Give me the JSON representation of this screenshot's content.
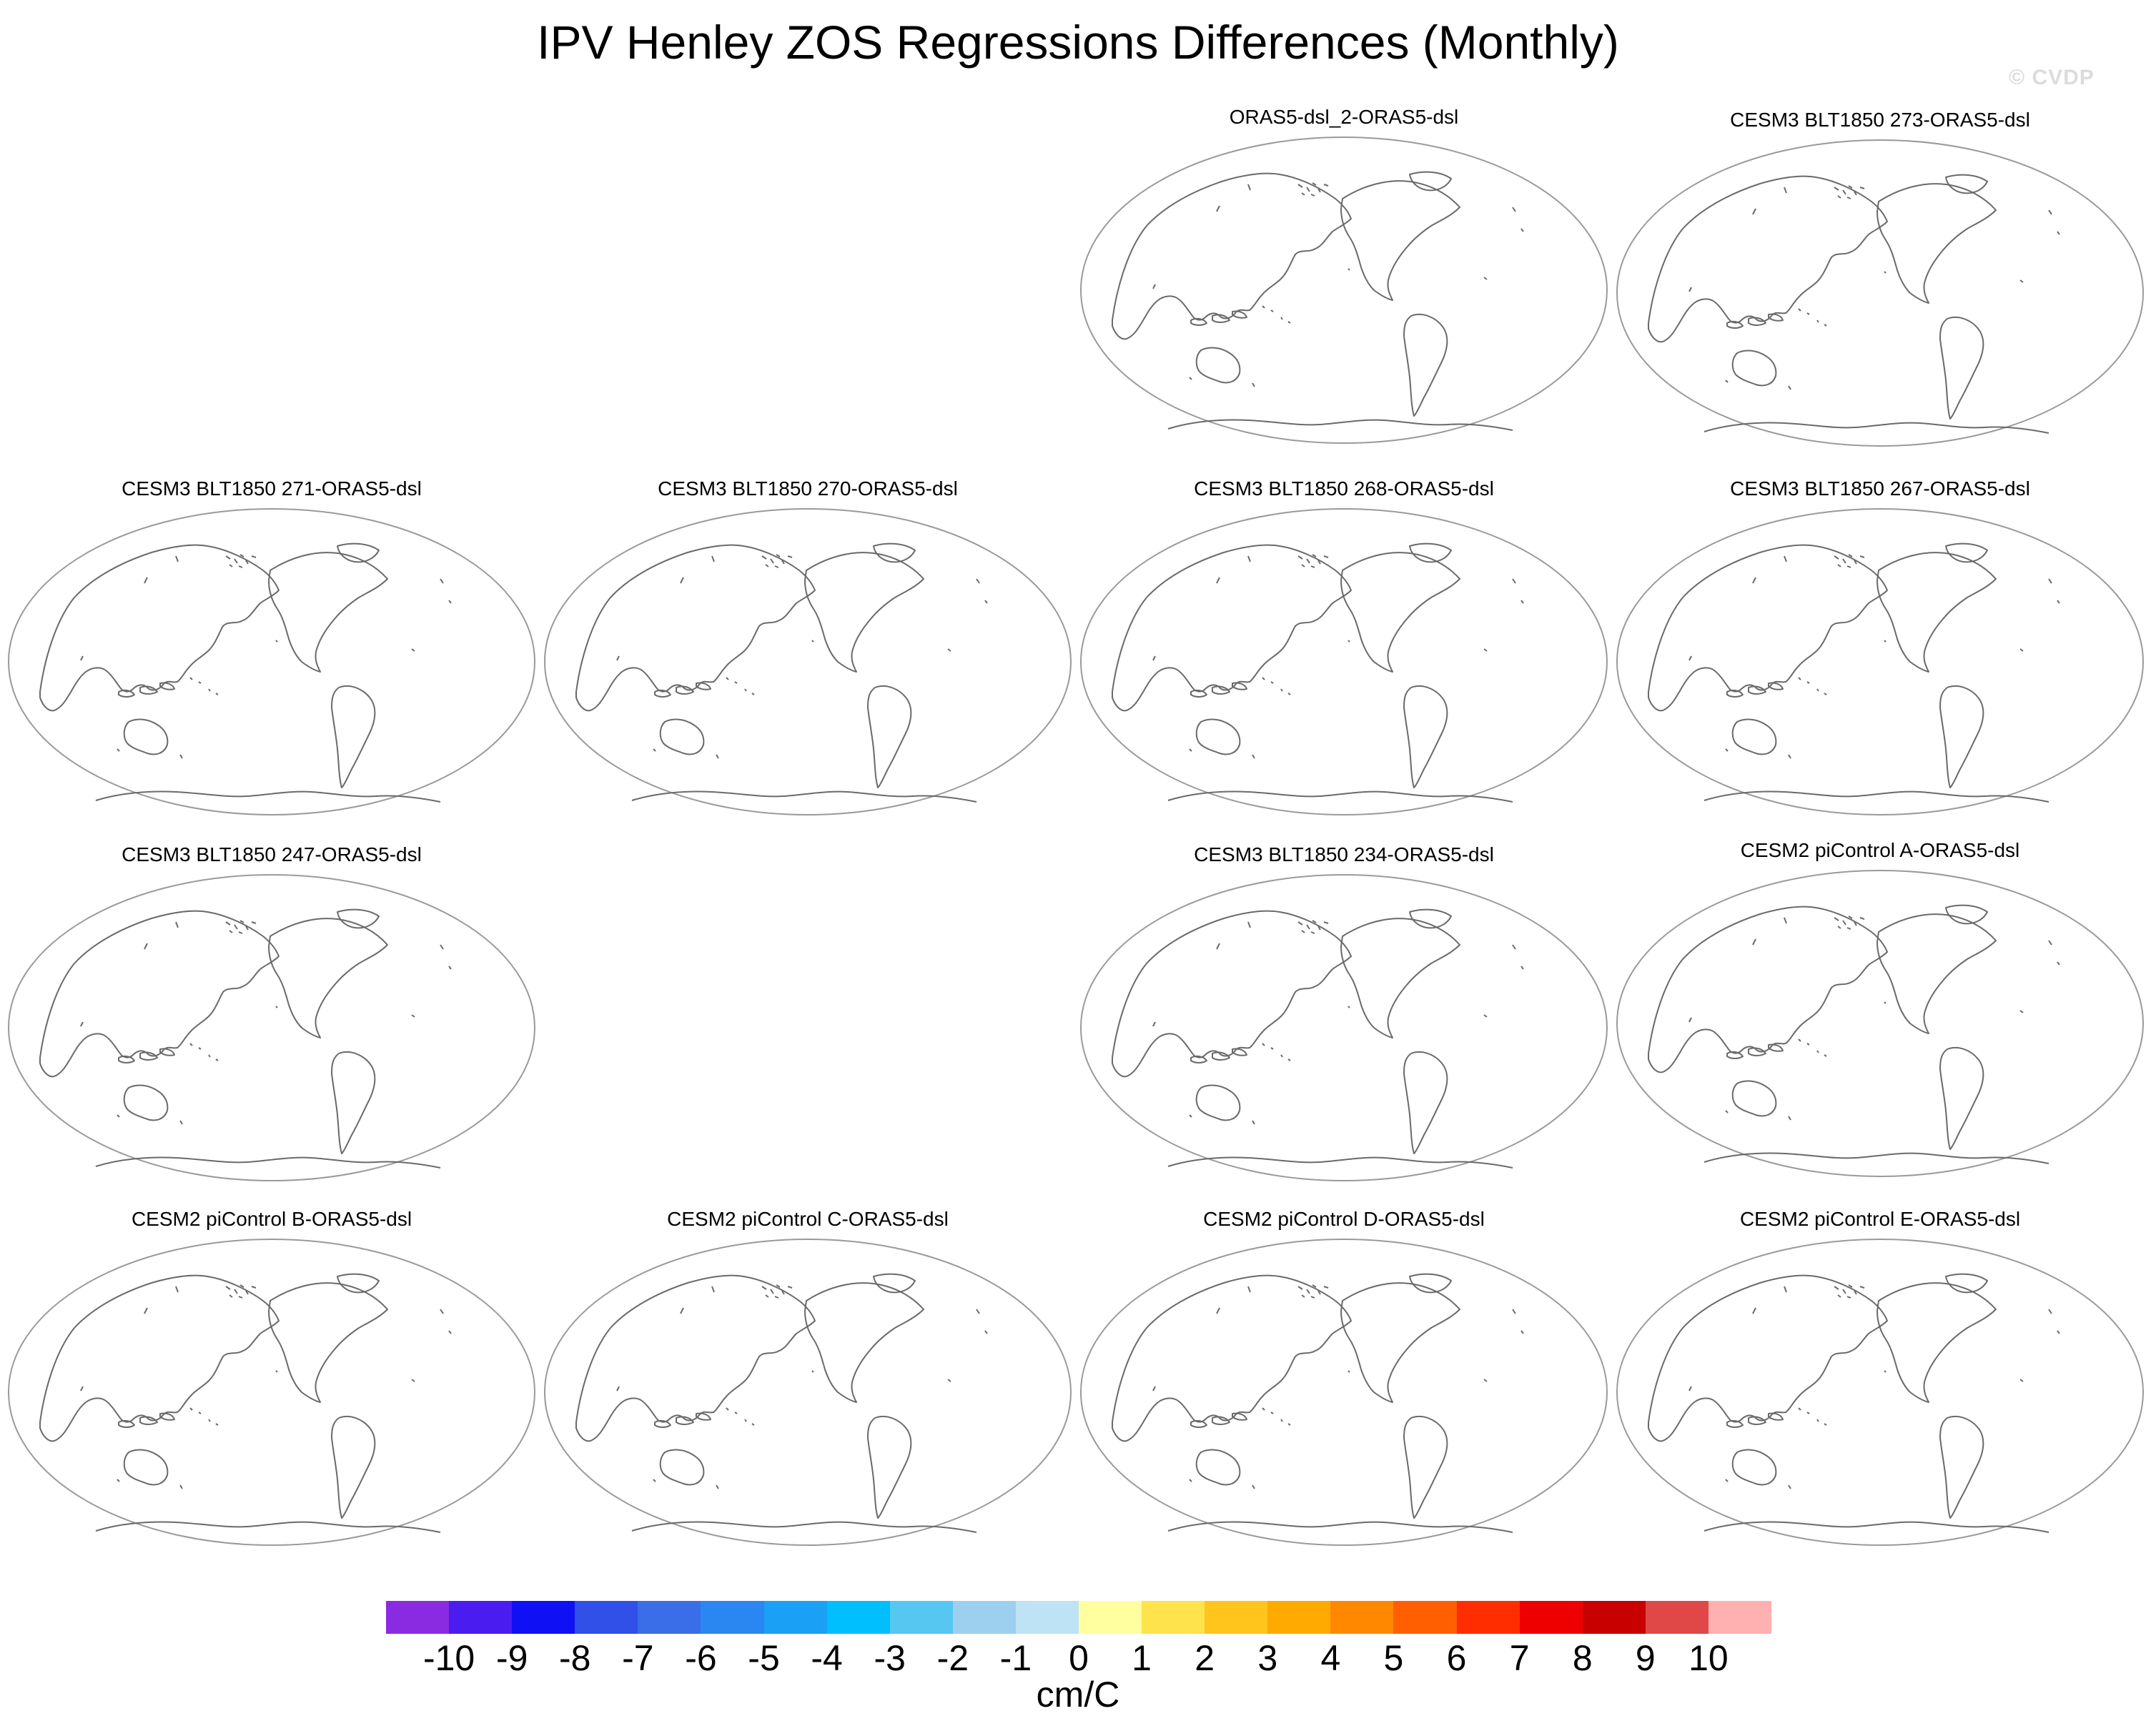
{
  "title": "IPV Henley ZOS Regressions Differences (Monthly)",
  "watermark": "© CVDP",
  "panels": [
    {
      "title": "ORAS5-dsl_2-ORAS5-dsl"
    },
    {
      "title": "CESM3 BLT1850 273-ORAS5-dsl"
    },
    {
      "title": "CESM3 BLT1850 271-ORAS5-dsl"
    },
    {
      "title": "CESM3 BLT1850 270-ORAS5-dsl"
    },
    {
      "title": "CESM3 BLT1850 268-ORAS5-dsl"
    },
    {
      "title": "CESM3 BLT1850 267-ORAS5-dsl"
    },
    {
      "title": "CESM3 BLT1850 247-ORAS5-dsl"
    },
    {
      "title": "CESM3 BLT1850 234-ORAS5-dsl"
    },
    {
      "title": "CESM2 piControl A-ORAS5-dsl"
    },
    {
      "title": "CESM2 piControl B-ORAS5-dsl"
    },
    {
      "title": "CESM2 piControl C-ORAS5-dsl"
    },
    {
      "title": "CESM2 piControl D-ORAS5-dsl"
    },
    {
      "title": "CESM2 piControl E-ORAS5-dsl"
    }
  ],
  "colorbar": {
    "units": "cm/C",
    "labels": [
      "-10",
      "-9",
      "-8",
      "-7",
      "-6",
      "-5",
      "-4",
      "-3",
      "-2",
      "-1",
      "0",
      "1",
      "2",
      "3",
      "4",
      "5",
      "6",
      "7",
      "8",
      "9",
      "10"
    ],
    "colors": [
      "#8a2be2",
      "#4b1cf0",
      "#1010f5",
      "#3050e8",
      "#3a6ee8",
      "#2a86f0",
      "#1aa0f5",
      "#00bfff",
      "#55c7f0",
      "#9dd0ee",
      "#bde3f5",
      "#ffffa0",
      "#ffe34d",
      "#ffc51c",
      "#ffaa00",
      "#ff8800",
      "#ff5f00",
      "#ff2d00",
      "#ee0000",
      "#c80000",
      "#e04848",
      "#ffb0b0"
    ]
  }
}
